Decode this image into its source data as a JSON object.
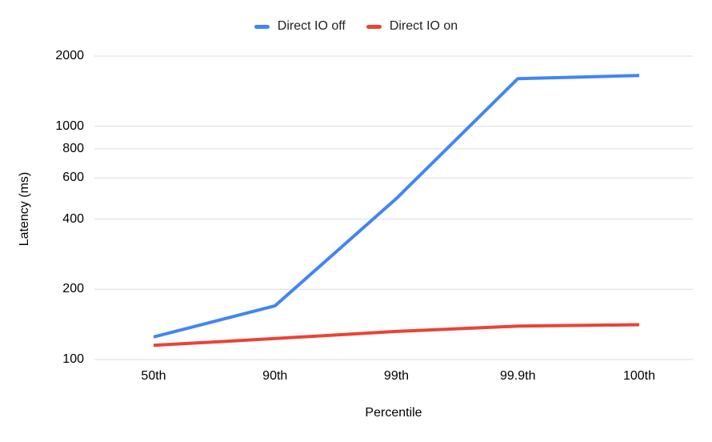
{
  "chart_data": {
    "type": "line",
    "title": "",
    "categories": [
      "50th",
      "90th",
      "99th",
      "99.9th",
      "100th"
    ],
    "series": [
      {
        "name": "Direct IO off",
        "color": "#4285F4",
        "values": [
          125,
          170,
          490,
          1600,
          1650
        ]
      },
      {
        "name": "Direct IO on",
        "color": "#EA4335",
        "values": [
          115,
          123,
          132,
          139,
          141
        ]
      }
    ],
    "xlabel": "Percentile",
    "ylabel": "Latency (ms)",
    "y_scale": "log",
    "ylim": [
      100,
      2000
    ],
    "y_ticks": [
      100,
      200,
      400,
      600,
      800,
      1000,
      2000
    ],
    "grid": true,
    "legend_position": "top",
    "gridline_color": "#dadce0",
    "background_color": "#ffffff"
  }
}
